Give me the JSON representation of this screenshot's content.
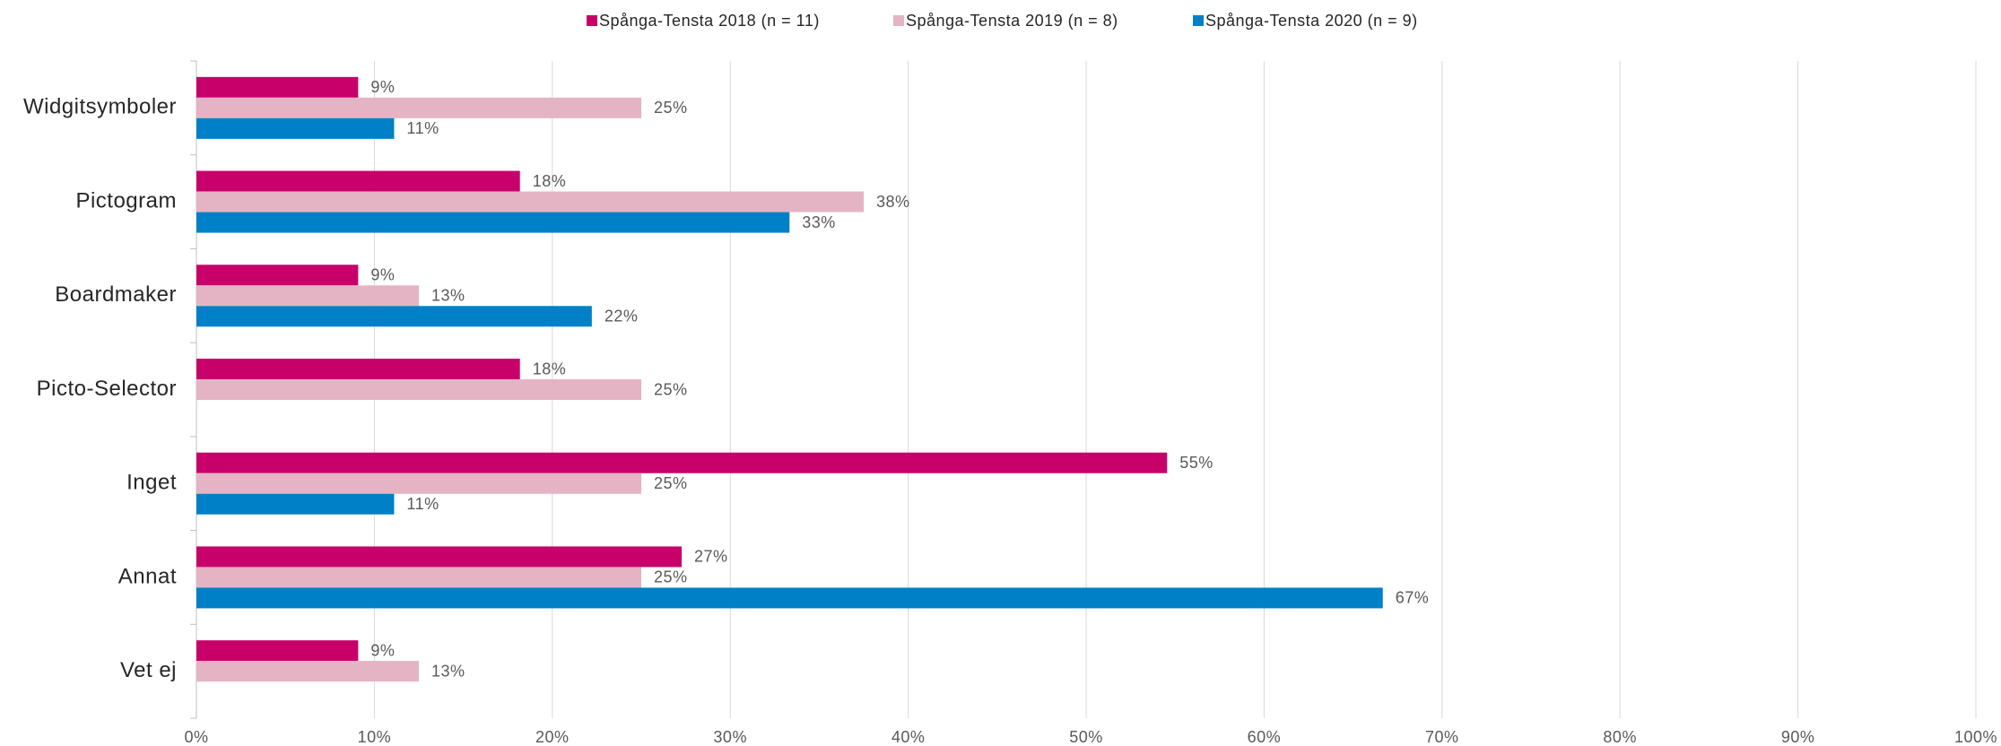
{
  "chart_data": {
    "type": "barh",
    "categories": [
      "Widgitsymboler",
      "Pictogram",
      "Boardmaker",
      "Picto-Selector",
      "Inget",
      "Annat",
      "Vet ej"
    ],
    "series": [
      {
        "name": "Spånga-Tensta 2018 (n = 11)",
        "color": "#c8006a",
        "values": [
          9.09,
          18.18,
          9.09,
          18.18,
          54.55,
          27.27,
          9.09
        ],
        "value_labels": [
          "9%",
          "18%",
          "9%",
          "18%",
          "55%",
          "27%",
          "9%"
        ]
      },
      {
        "name": "Spånga-Tensta 2019 (n = 8)",
        "color": "#e4b3c4",
        "values": [
          25,
          37.5,
          12.5,
          25,
          25,
          25,
          12.5
        ],
        "value_labels": [
          "25%",
          "38%",
          "13%",
          "25%",
          "25%",
          "25%",
          "13%"
        ]
      },
      {
        "name": "Spånga-Tensta 2020 (n = 9)",
        "color": "#0080c6",
        "values": [
          11.11,
          33.33,
          22.22,
          null,
          11.11,
          66.67,
          null
        ],
        "value_labels": [
          "11%",
          "33%",
          "22%",
          null,
          "11%",
          "67%",
          null
        ]
      }
    ],
    "xlim": [
      0,
      100
    ],
    "xticks": [
      {
        "value": 0,
        "label": "0%"
      },
      {
        "value": 10,
        "label": "10%"
      },
      {
        "value": 20,
        "label": "20%"
      },
      {
        "value": 30,
        "label": "30%"
      },
      {
        "value": 40,
        "label": "40%"
      },
      {
        "value": 50,
        "label": "50%"
      },
      {
        "value": 60,
        "label": "60%"
      },
      {
        "value": 70,
        "label": "70%"
      },
      {
        "value": 80,
        "label": "80%"
      },
      {
        "value": 90,
        "label": "90%"
      },
      {
        "value": 100,
        "label": "100%"
      }
    ],
    "grid": true,
    "legend": "top"
  }
}
